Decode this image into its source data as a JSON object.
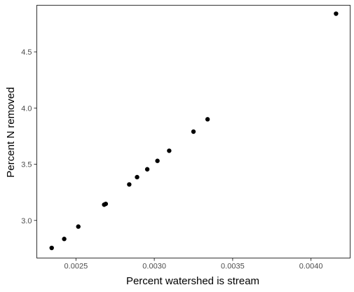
{
  "chart_data": {
    "type": "scatter",
    "title": "",
    "xlabel": "Percent watershed is stream",
    "ylabel": "Percent N removed",
    "xlim": [
      0.00225,
      0.00425
    ],
    "ylim": [
      2.665,
      4.915
    ],
    "x_ticks": [
      0.0025,
      0.003,
      0.0035,
      0.004
    ],
    "x_tick_labels": [
      "0.0025",
      "0.0030",
      "0.0035",
      "0.0040"
    ],
    "y_ticks": [
      3.0,
      3.5,
      4.0,
      4.5
    ],
    "y_tick_labels": [
      "3.0",
      "3.5",
      "4.0",
      "4.5"
    ],
    "grid": false,
    "legend": "none",
    "point_color": "#000000",
    "frame_color": "#333333",
    "points": [
      {
        "x": 0.002345,
        "y": 2.755
      },
      {
        "x": 0.002425,
        "y": 2.835
      },
      {
        "x": 0.002515,
        "y": 2.945
      },
      {
        "x": 0.00268,
        "y": 3.14
      },
      {
        "x": 0.00269,
        "y": 3.147
      },
      {
        "x": 0.00284,
        "y": 3.32
      },
      {
        "x": 0.00289,
        "y": 3.385
      },
      {
        "x": 0.002955,
        "y": 3.455
      },
      {
        "x": 0.00302,
        "y": 3.53
      },
      {
        "x": 0.003095,
        "y": 3.62
      },
      {
        "x": 0.00325,
        "y": 3.79
      },
      {
        "x": 0.00334,
        "y": 3.9
      },
      {
        "x": 0.00416,
        "y": 4.84
      }
    ]
  }
}
